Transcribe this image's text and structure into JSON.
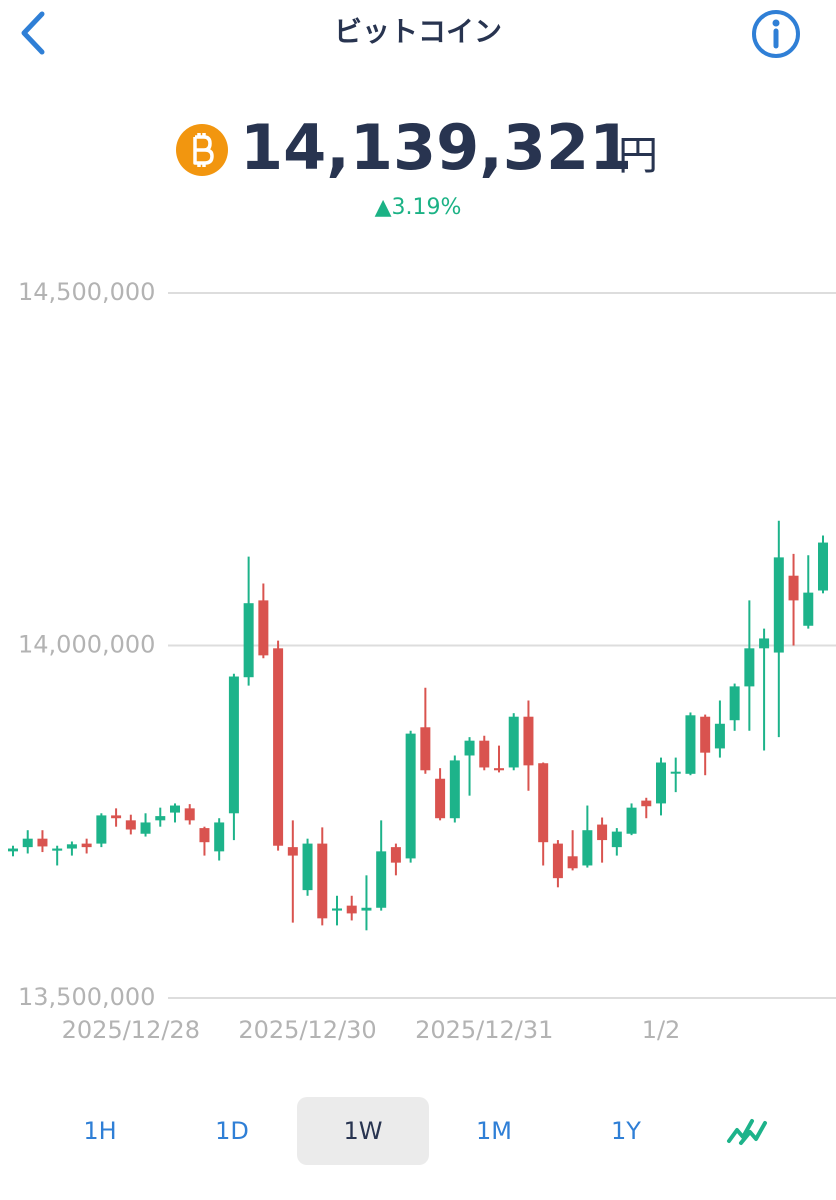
{
  "header": {
    "title": "ビットコイン"
  },
  "price": {
    "value": "14,139,321",
    "unit": "円",
    "change": "▲3.19%"
  },
  "chart_data": {
    "type": "candlestick",
    "categories": [
      null,
      null,
      null,
      null,
      null,
      null,
      null,
      null,
      "2025/12/28",
      null,
      null,
      null,
      null,
      null,
      null,
      null,
      null,
      null,
      null,
      null,
      "2025/12/30",
      null,
      null,
      null,
      null,
      null,
      null,
      null,
      null,
      null,
      null,
      null,
      "2025/12/31",
      null,
      null,
      null,
      null,
      null,
      null,
      null,
      null,
      null,
      null,
      null,
      "1/2",
      null,
      null,
      null,
      null,
      null,
      null,
      null,
      null,
      null,
      null,
      null
    ],
    "open": [
      13708000,
      13714000,
      13726000,
      13709000,
      13712000,
      13719000,
      13719000,
      13759000,
      13752000,
      13733000,
      13752000,
      13763000,
      13769000,
      13741000,
      13708000,
      13762000,
      13955000,
      14064000,
      13996000,
      13714000,
      13653000,
      13719000,
      13624000,
      13631000,
      13624000,
      13628000,
      13714000,
      13698000,
      13884000,
      13811000,
      13755000,
      13844000,
      13865000,
      13826000,
      13827000,
      13899000,
      13833000,
      13719000,
      13701000,
      13688000,
      13746000,
      13714000,
      13733000,
      13780000,
      13776000,
      13820000,
      13818000,
      13899000,
      13854000,
      13894000,
      13942000,
      13996000,
      13990000,
      14099000,
      14028000,
      14078000
    ],
    "high": [
      13716000,
      13738000,
      13738000,
      13716000,
      13722000,
      13726000,
      13762000,
      13769000,
      13760000,
      13762000,
      13770000,
      13776000,
      13775000,
      13743000,
      13755000,
      13960000,
      14126000,
      14088000,
      14007000,
      13752000,
      13726000,
      13742000,
      13645000,
      13645000,
      13674000,
      13752000,
      13719000,
      13879000,
      13940000,
      13826000,
      13844000,
      13870000,
      13872000,
      13858000,
      13904000,
      13922000,
      13834000,
      13724000,
      13738000,
      13773000,
      13756000,
      13741000,
      13776000,
      13784000,
      13841000,
      13841000,
      13905000,
      13902000,
      13922000,
      13946000,
      14064000,
      14024000,
      14177000,
      14130000,
      14128000,
      14156000
    ],
    "low": [
      13701000,
      13705000,
      13707000,
      13688000,
      13702000,
      13705000,
      13714000,
      13743000,
      13732000,
      13729000,
      13743000,
      13749000,
      13746000,
      13702000,
      13695000,
      13724000,
      13943000,
      13982000,
      13709000,
      13607000,
      13645000,
      13603000,
      13603000,
      13610000,
      13596000,
      13624000,
      13674000,
      13692000,
      13818000,
      13752000,
      13749000,
      13787000,
      13823000,
      13820000,
      13823000,
      13794000,
      13688000,
      13657000,
      13681000,
      13685000,
      13692000,
      13702000,
      13731000,
      13755000,
      13759000,
      13792000,
      13816000,
      13816000,
      13841000,
      13879000,
      13879000,
      13851000,
      13870000,
      14000000,
      14024000,
      14074000
    ],
    "close": [
      13712000,
      13726000,
      13715000,
      13712000,
      13718000,
      13714000,
      13759000,
      13755000,
      13739000,
      13749000,
      13758000,
      13773000,
      13752000,
      13721000,
      13749000,
      13956000,
      14060000,
      13986000,
      13716000,
      13702000,
      13719000,
      13613000,
      13627000,
      13620000,
      13628000,
      13708000,
      13692000,
      13875000,
      13823000,
      13755000,
      13837000,
      13865000,
      13827000,
      13823000,
      13899000,
      13830000,
      13721000,
      13670000,
      13684000,
      13738000,
      13724000,
      13736000,
      13770000,
      13772000,
      13834000,
      13821000,
      13901000,
      13848000,
      13889000,
      13942000,
      13996000,
      14010000,
      14125000,
      14064000,
      14075000,
      14146000
    ],
    "up_color": "#1db38a",
    "down_color": "#d9534f",
    "ylim": [
      13500000,
      14500000
    ],
    "yticks": [
      {
        "value": 13500000,
        "label": "13,500,000"
      },
      {
        "value": 14000000,
        "label": "14,000,000"
      },
      {
        "value": 14500000,
        "label": "14,500,000"
      }
    ],
    "grid": true
  },
  "tabs": [
    {
      "label": "1H"
    },
    {
      "label": "1D"
    },
    {
      "label": "1W",
      "selected": true
    },
    {
      "label": "1M"
    },
    {
      "label": "1Y"
    }
  ]
}
